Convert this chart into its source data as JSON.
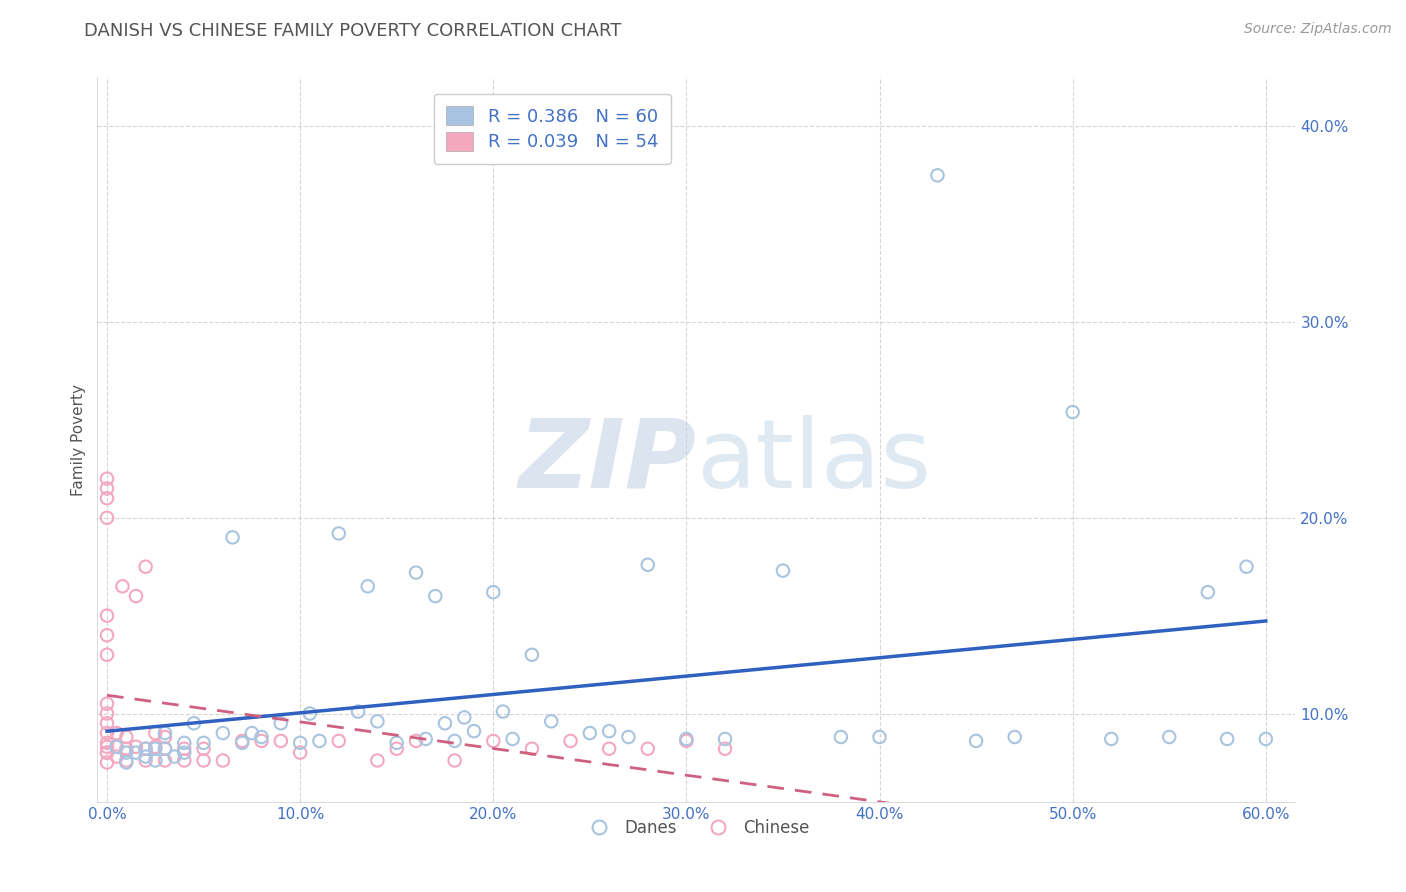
{
  "title": "DANISH VS CHINESE FAMILY POVERTY CORRELATION CHART",
  "source": "Source: ZipAtlas.com",
  "ylabel": "Family Poverty",
  "xlim": [
    -0.005,
    0.615
  ],
  "ylim": [
    0.055,
    0.425
  ],
  "xticks": [
    0.0,
    0.1,
    0.2,
    0.3,
    0.4,
    0.5,
    0.6
  ],
  "xticklabels": [
    "0.0%",
    "10.0%",
    "20.0%",
    "30.0%",
    "40.0%",
    "50.0%",
    "60.0%"
  ],
  "yticks": [
    0.1,
    0.2,
    0.3,
    0.4
  ],
  "yticklabels": [
    "10.0%",
    "20.0%",
    "30.0%",
    "40.0%"
  ],
  "danes_R": 0.386,
  "danes_N": 60,
  "chinese_R": 0.039,
  "chinese_N": 54,
  "danes_color": "#a8c4e0",
  "chinese_color": "#f4a8c0",
  "danes_line_color": "#3060c0",
  "chinese_line_color": "#d06080",
  "background_color": "#ffffff",
  "grid_color": "#cccccc",
  "title_color": "#555555",
  "legend_text_color": "#4472c4",
  "watermark_zip": "ZIP",
  "watermark_atlas": "atlas",
  "danes_x": [
    0.005,
    0.01,
    0.01,
    0.015,
    0.02,
    0.02,
    0.025,
    0.025,
    0.03,
    0.03,
    0.035,
    0.04,
    0.04,
    0.045,
    0.05,
    0.06,
    0.065,
    0.07,
    0.075,
    0.08,
    0.09,
    0.1,
    0.105,
    0.11,
    0.12,
    0.13,
    0.135,
    0.14,
    0.15,
    0.16,
    0.165,
    0.17,
    0.175,
    0.18,
    0.185,
    0.19,
    0.2,
    0.205,
    0.21,
    0.22,
    0.23,
    0.25,
    0.26,
    0.27,
    0.28,
    0.3,
    0.32,
    0.35,
    0.38,
    0.4,
    0.43,
    0.45,
    0.47,
    0.5,
    0.52,
    0.55,
    0.57,
    0.58,
    0.59,
    0.6
  ],
  "danes_y": [
    0.083,
    0.08,
    0.075,
    0.08,
    0.078,
    0.082,
    0.076,
    0.082,
    0.09,
    0.082,
    0.078,
    0.085,
    0.08,
    0.095,
    0.085,
    0.09,
    0.19,
    0.085,
    0.09,
    0.088,
    0.095,
    0.085,
    0.1,
    0.086,
    0.192,
    0.101,
    0.165,
    0.096,
    0.085,
    0.172,
    0.087,
    0.16,
    0.095,
    0.086,
    0.098,
    0.091,
    0.162,
    0.101,
    0.087,
    0.13,
    0.096,
    0.09,
    0.091,
    0.088,
    0.176,
    0.087,
    0.087,
    0.173,
    0.088,
    0.088,
    0.375,
    0.086,
    0.088,
    0.254,
    0.087,
    0.088,
    0.162,
    0.087,
    0.175,
    0.087
  ],
  "chinese_x": [
    0.0,
    0.0,
    0.0,
    0.0,
    0.0,
    0.0,
    0.0,
    0.0,
    0.0,
    0.0,
    0.0,
    0.0,
    0.0,
    0.0,
    0.0,
    0.0,
    0.005,
    0.005,
    0.005,
    0.008,
    0.01,
    0.01,
    0.01,
    0.015,
    0.015,
    0.02,
    0.02,
    0.02,
    0.025,
    0.025,
    0.03,
    0.03,
    0.03,
    0.04,
    0.04,
    0.05,
    0.05,
    0.06,
    0.07,
    0.08,
    0.09,
    0.1,
    0.12,
    0.14,
    0.15,
    0.16,
    0.18,
    0.2,
    0.22,
    0.24,
    0.26,
    0.28,
    0.3,
    0.32
  ],
  "chinese_y": [
    0.083,
    0.08,
    0.075,
    0.08,
    0.085,
    0.09,
    0.095,
    0.1,
    0.105,
    0.13,
    0.14,
    0.15,
    0.2,
    0.21,
    0.215,
    0.22,
    0.078,
    0.083,
    0.09,
    0.165,
    0.076,
    0.082,
    0.088,
    0.083,
    0.16,
    0.076,
    0.082,
    0.175,
    0.083,
    0.09,
    0.076,
    0.082,
    0.088,
    0.076,
    0.082,
    0.076,
    0.082,
    0.076,
    0.086,
    0.086,
    0.086,
    0.08,
    0.086,
    0.076,
    0.082,
    0.086,
    0.076,
    0.086,
    0.082,
    0.086,
    0.082,
    0.082,
    0.086,
    0.082
  ]
}
